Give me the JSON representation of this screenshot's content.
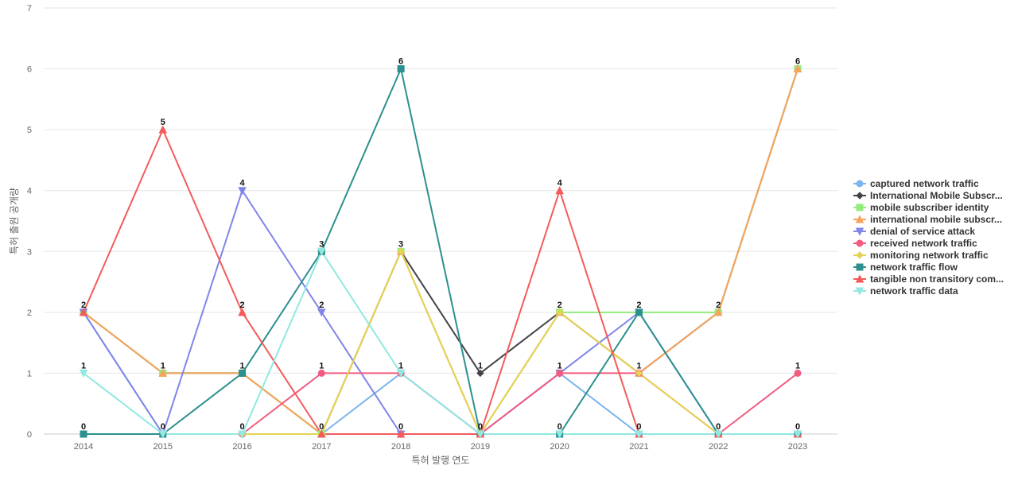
{
  "chart_data": {
    "type": "line",
    "title": "",
    "xlabel": "특허 발행 연도",
    "ylabel": "특허 출원 공개량",
    "ylim": [
      0,
      7
    ],
    "yticks": [
      0,
      1,
      2,
      3,
      4,
      5,
      6,
      7
    ],
    "x": [
      "2014",
      "2015",
      "2016",
      "2017",
      "2018",
      "2019",
      "2020",
      "2021",
      "2022",
      "2023"
    ],
    "grid": true,
    "legend_position": "right",
    "series": [
      {
        "name": "captured network traffic",
        "color": "#7cb5ec",
        "marker": "circle",
        "values": [
          2,
          0,
          0,
          0,
          1,
          0,
          1,
          0,
          0,
          0
        ]
      },
      {
        "name": "International Mobile Subscr...",
        "color": "#434348",
        "marker": "diamond",
        "values": [
          2,
          1,
          1,
          0,
          3,
          1,
          2,
          1,
          2,
          6
        ]
      },
      {
        "name": "mobile subscriber identity",
        "color": "#90ed7d",
        "marker": "square",
        "values": [
          2,
          1,
          1,
          0,
          3,
          0,
          2,
          2,
          2,
          6
        ]
      },
      {
        "name": "international mobile subscr...",
        "color": "#f7a35c",
        "marker": "triangle",
        "values": [
          2,
          1,
          1,
          0,
          3,
          0,
          2,
          1,
          2,
          6
        ]
      },
      {
        "name": "denial of service attack",
        "color": "#8085e9",
        "marker": "triangle-down",
        "values": [
          2,
          0,
          4,
          2,
          0,
          0,
          1,
          2,
          0,
          0
        ]
      },
      {
        "name": "received network traffic",
        "color": "#f15c80",
        "marker": "circle",
        "values": [
          0,
          0,
          0,
          1,
          1,
          0,
          1,
          1,
          0,
          1
        ]
      },
      {
        "name": "monitoring network traffic",
        "color": "#e4d354",
        "marker": "diamond",
        "values": [
          0,
          0,
          0,
          0,
          3,
          0,
          2,
          1,
          0,
          0
        ]
      },
      {
        "name": "network traffic flow",
        "color": "#2b908f",
        "marker": "square",
        "values": [
          0,
          0,
          1,
          3,
          6,
          0,
          0,
          2,
          0,
          0
        ]
      },
      {
        "name": "tangible non transitory com...",
        "color": "#f45b5b",
        "marker": "triangle",
        "values": [
          2,
          5,
          2,
          0,
          0,
          0,
          4,
          0,
          0,
          0
        ]
      },
      {
        "name": "network traffic data",
        "color": "#91e8e1",
        "marker": "triangle-down",
        "values": [
          1,
          0,
          0,
          3,
          1,
          0,
          0,
          0,
          0,
          0
        ]
      }
    ],
    "point_labels": [
      {
        "x": "2014",
        "text": "2"
      },
      {
        "x": "2014",
        "text": "1"
      },
      {
        "x": "2014",
        "text": "0"
      },
      {
        "x": "2015",
        "text": "5"
      },
      {
        "x": "2015",
        "text": "1"
      },
      {
        "x": "2015",
        "text": "0"
      },
      {
        "x": "2016",
        "text": "4"
      },
      {
        "x": "2016",
        "text": "2"
      },
      {
        "x": "2016",
        "text": "1"
      },
      {
        "x": "2016",
        "text": "0"
      },
      {
        "x": "2017",
        "text": "3"
      },
      {
        "x": "2017",
        "text": "2"
      },
      {
        "x": "2017",
        "text": "1"
      },
      {
        "x": "2017",
        "text": "0"
      },
      {
        "x": "2018",
        "text": "6"
      },
      {
        "x": "2018",
        "text": "3"
      },
      {
        "x": "2018",
        "text": "1"
      },
      {
        "x": "2018",
        "text": "0"
      },
      {
        "x": "2019",
        "text": "1"
      },
      {
        "x": "2019",
        "text": "0"
      },
      {
        "x": "2020",
        "text": "4"
      },
      {
        "x": "2020",
        "text": "2"
      },
      {
        "x": "2020",
        "text": "1"
      },
      {
        "x": "2020",
        "text": "0"
      },
      {
        "x": "2021",
        "text": "2"
      },
      {
        "x": "2021",
        "text": "1"
      },
      {
        "x": "2021",
        "text": "0"
      },
      {
        "x": "2022",
        "text": "2"
      },
      {
        "x": "2022",
        "text": "0"
      },
      {
        "x": "2023",
        "text": "6"
      },
      {
        "x": "2023",
        "text": "1"
      },
      {
        "x": "2023",
        "text": "0"
      }
    ]
  }
}
